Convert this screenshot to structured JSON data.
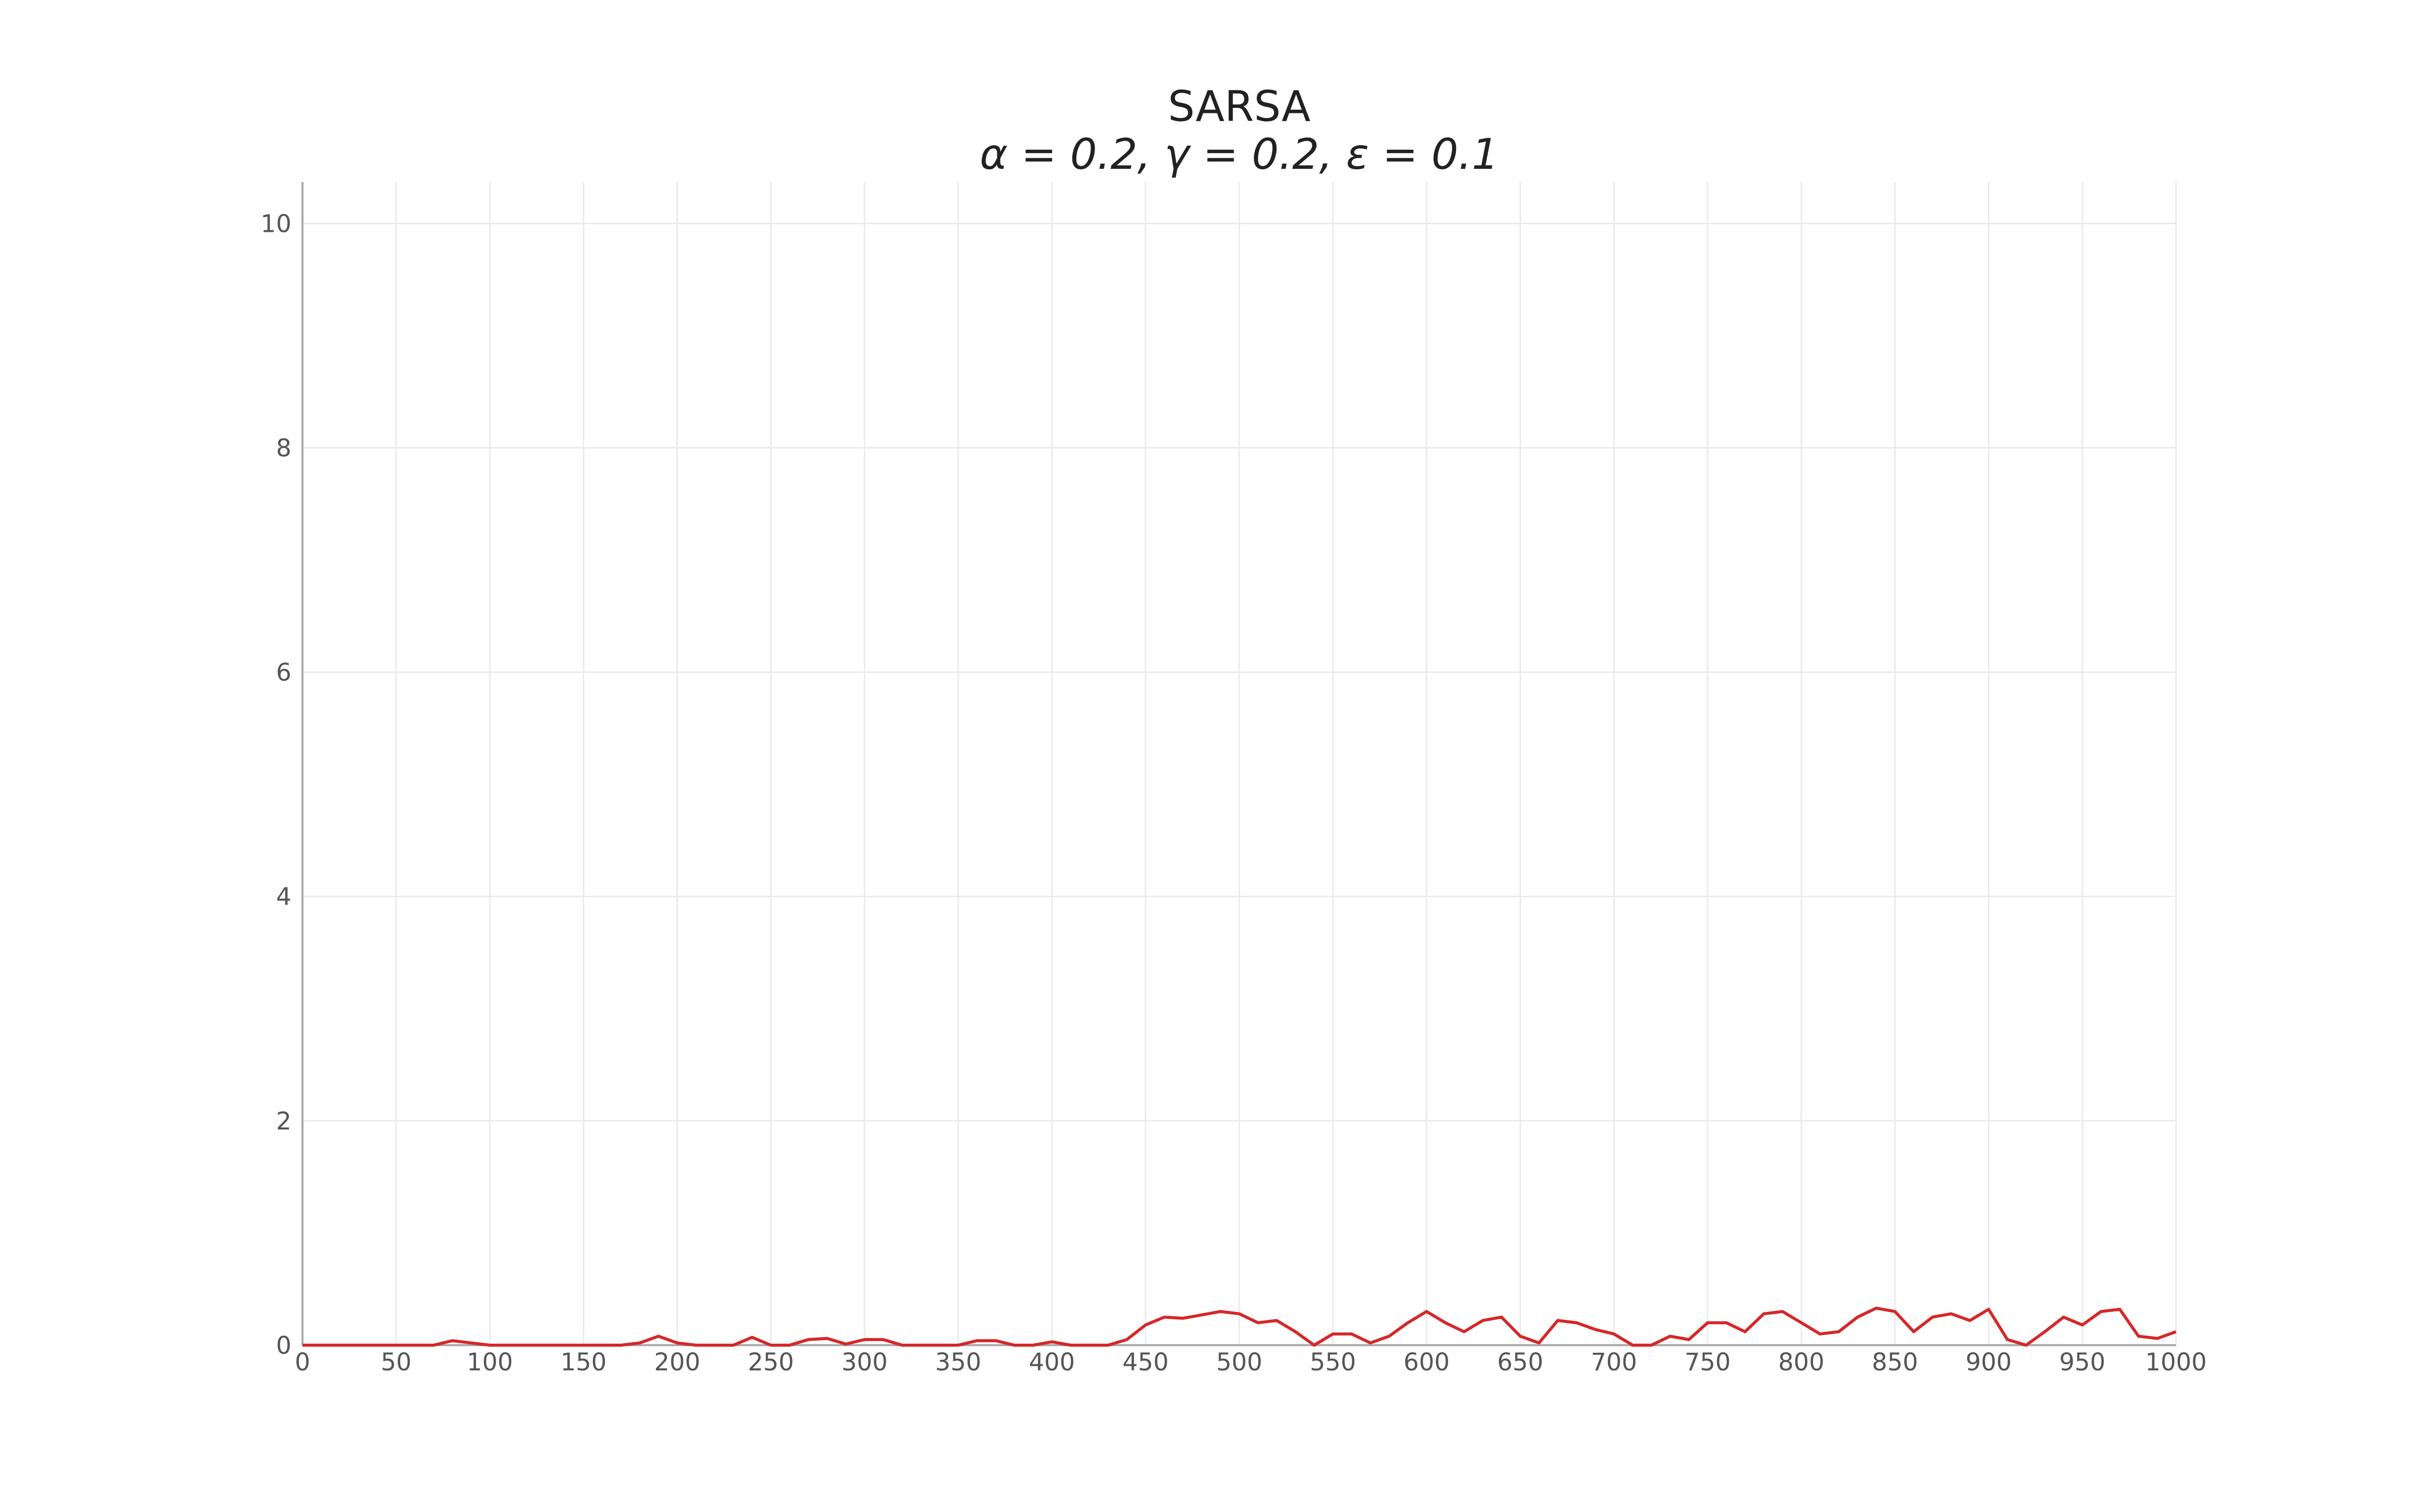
{
  "chart_data": {
    "type": "line",
    "title": "SARSA",
    "subtitle": "α = 0.2, γ = 0.2, ε = 0.1",
    "x": [
      0,
      10,
      20,
      30,
      40,
      50,
      60,
      70,
      80,
      90,
      100,
      110,
      120,
      130,
      140,
      150,
      160,
      170,
      180,
      190,
      200,
      210,
      220,
      230,
      240,
      250,
      260,
      270,
      280,
      290,
      300,
      310,
      320,
      330,
      340,
      350,
      360,
      370,
      380,
      390,
      400,
      410,
      420,
      430,
      440,
      450,
      460,
      470,
      480,
      490,
      500,
      510,
      520,
      530,
      540,
      550,
      560,
      570,
      580,
      590,
      600,
      610,
      620,
      630,
      640,
      650,
      660,
      670,
      680,
      690,
      700,
      710,
      720,
      730,
      740,
      750,
      760,
      770,
      780,
      790,
      800,
      810,
      820,
      830,
      840,
      850,
      860,
      870,
      880,
      890,
      900,
      910,
      920,
      930,
      940,
      950,
      960,
      970,
      980,
      990,
      1000
    ],
    "values": [
      0,
      0,
      0,
      0,
      0,
      0,
      0,
      0,
      0.04,
      0.02,
      0,
      0,
      0,
      0,
      0,
      0,
      0,
      0,
      0.02,
      0.08,
      0.02,
      0,
      0,
      0,
      0.07,
      0,
      0,
      0.05,
      0.06,
      0.01,
      0.05,
      0.05,
      0,
      0,
      0,
      0,
      0.04,
      0.04,
      0,
      0,
      0.03,
      0,
      0,
      0,
      0.05,
      0.18,
      0.25,
      0.24,
      0.27,
      0.3,
      0.28,
      0.2,
      0.22,
      0.12,
      0,
      0.1,
      0.1,
      0.02,
      0.08,
      0.2,
      0.3,
      0.2,
      0.12,
      0.22,
      0.25,
      0.08,
      0.02,
      0.22,
      0.2,
      0.14,
      0.1,
      0,
      0,
      0.08,
      0.05,
      0.2,
      0.2,
      0.12,
      0.28,
      0.3,
      0.2,
      0.1,
      0.12,
      0.25,
      0.33,
      0.3,
      0.12,
      0.25,
      0.28,
      0.22,
      0.32,
      0.05,
      0,
      0.12,
      0.25,
      0.18,
      0.3,
      0.32,
      0.08,
      0.06,
      0.12
    ],
    "color": "#d62728",
    "xlim": [
      0,
      1000
    ],
    "xticks": [
      0,
      50,
      100,
      150,
      200,
      250,
      300,
      350,
      400,
      450,
      500,
      550,
      600,
      650,
      700,
      750,
      800,
      850,
      900,
      950,
      1000
    ],
    "ylim": [
      0,
      10.37
    ],
    "yticks": [
      0,
      2,
      4,
      6,
      8,
      10
    ],
    "grid": true
  }
}
